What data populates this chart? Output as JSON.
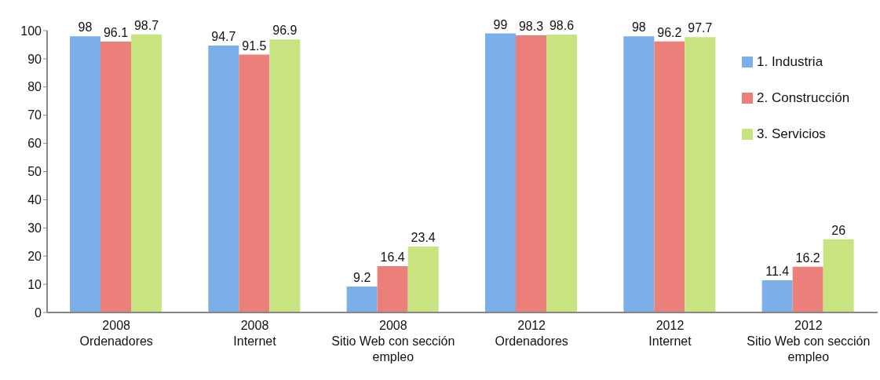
{
  "chart_data": {
    "type": "bar",
    "categories": [
      "2008\nOrdenadores",
      "2008\nInternet",
      "2008\nSitio Web con sección empleo",
      "2012\nOrdenadores",
      "2012\nInternet",
      "2012\nSitio Web con sección empleo"
    ],
    "series": [
      {
        "name": "1. Industria",
        "color": "#7caeea",
        "values": [
          98,
          94.7,
          9.2,
          99,
          98,
          11.4
        ]
      },
      {
        "name": "2. Construcción",
        "color": "#eb807a",
        "values": [
          96.1,
          91.5,
          16.4,
          98.3,
          96.2,
          16.2
        ]
      },
      {
        "name": "3. Servicios",
        "color": "#c7e481",
        "values": [
          98.7,
          96.9,
          23.4,
          98.6,
          97.7,
          26
        ]
      }
    ],
    "ylim": [
      0,
      100
    ],
    "yticks": [
      0,
      10,
      20,
      30,
      40,
      50,
      60,
      70,
      80,
      90,
      100
    ],
    "data_labels": true,
    "legend": "top right"
  }
}
